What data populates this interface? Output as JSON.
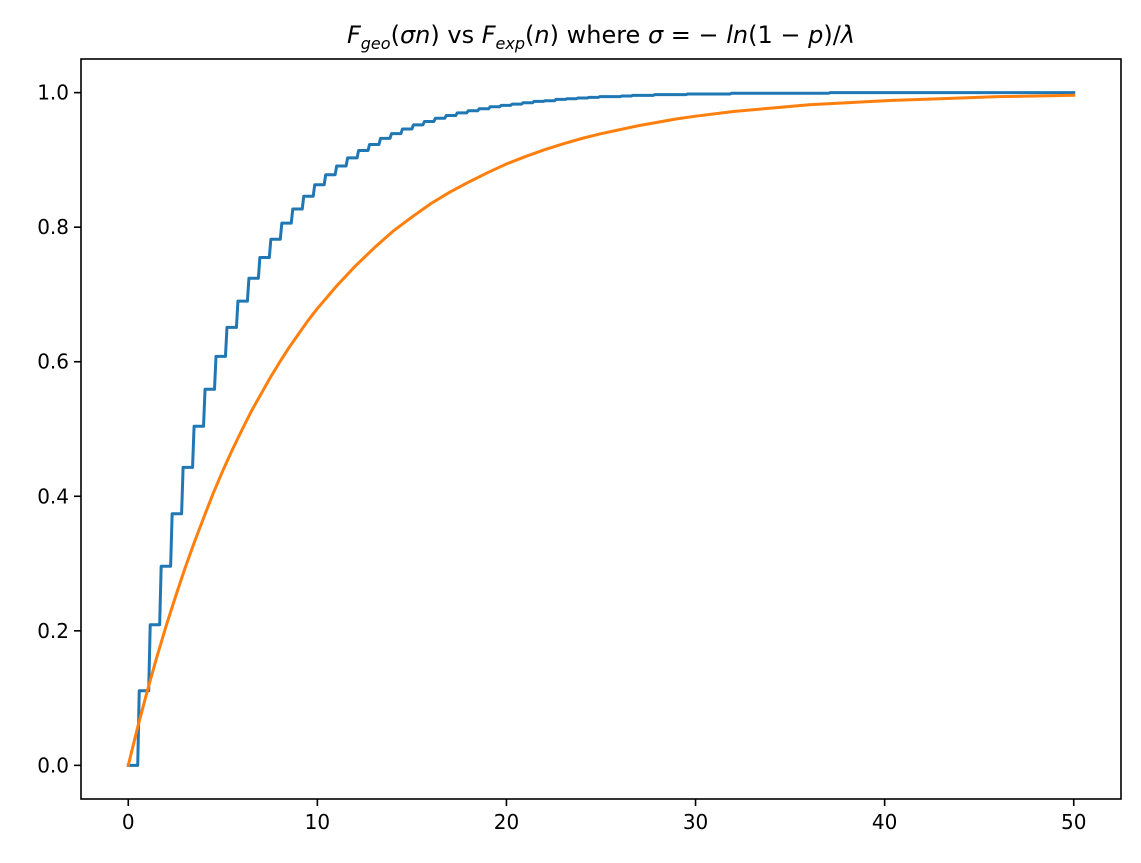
{
  "chart_data": {
    "type": "line",
    "title": {
      "geo_letter": "F",
      "geo_sub": "geo",
      "geo_arg_open": "(",
      "geo_arg_sigma": "σ",
      "geo_arg_n": "n",
      "geo_arg_close": ")",
      "vs": " vs ",
      "exp_letter": "F",
      "exp_sub": "exp",
      "exp_arg_open": "(",
      "exp_arg_n": "n",
      "exp_arg_close": ")",
      "where": " where ",
      "sigma_expr_a": "σ",
      "sigma_expr_b": " = − ",
      "sigma_expr_c": "ln",
      "sigma_expr_d": "(1 − ",
      "sigma_expr_e": "p",
      "sigma_expr_f": ")/",
      "sigma_expr_g": "λ"
    },
    "xlabel": "",
    "ylabel": "",
    "xlim": [
      -2.5,
      52.5
    ],
    "ylim": [
      -0.05,
      1.05
    ],
    "xticks": [
      0,
      10,
      20,
      30,
      40,
      50
    ],
    "yticks": [
      0.0,
      0.2,
      0.4,
      0.6,
      0.8,
      1.0
    ],
    "xtick_labels": [
      "0",
      "10",
      "20",
      "30",
      "40",
      "50"
    ],
    "ytick_labels": [
      "0.0",
      "0.2",
      "0.4",
      "0.6",
      "0.8",
      "1.0"
    ],
    "grid": false,
    "legend": "none",
    "series": [
      {
        "style": "step",
        "color": "#1f77b4",
        "x": [
          0,
          0.5,
          0.58,
          1.08,
          1.16,
          1.66,
          1.74,
          2.24,
          2.32,
          2.82,
          2.9,
          3.4,
          3.48,
          3.98,
          4.06,
          4.56,
          4.64,
          5.14,
          5.22,
          5.72,
          5.8,
          6.3,
          6.38,
          6.88,
          6.96,
          7.46,
          7.54,
          8.04,
          8.12,
          8.62,
          8.7,
          9.2,
          9.28,
          9.78,
          9.86,
          10.36,
          10.44,
          10.94,
          11.02,
          11.52,
          11.6,
          12.1,
          12.18,
          12.68,
          12.76,
          13.26,
          13.34,
          13.84,
          13.92,
          14.42,
          14.5,
          15.0,
          15.08,
          15.58,
          15.66,
          16.16,
          16.24,
          16.74,
          16.82,
          17.32,
          17.4,
          17.9,
          17.98,
          18.48,
          18.56,
          19.06,
          19.14,
          19.64,
          19.72,
          20.22,
          20.3,
          20.8,
          20.88,
          21.38,
          21.46,
          21.96,
          22.04,
          22.54,
          22.62,
          23.12,
          23.2,
          23.7,
          23.78,
          24.28,
          24.36,
          24.86,
          24.94,
          25.44,
          25.52,
          26.02,
          26.1,
          26.6,
          26.68,
          27.18,
          27.26,
          27.76,
          27.84,
          28.34,
          28.42,
          28.92,
          29.0,
          29.5,
          29.58,
          30.08,
          30.16,
          30.66,
          30.74,
          31.24,
          31.32,
          31.82,
          31.9,
          32.4,
          32.48,
          32.98,
          33.06,
          33.56,
          33.64,
          34.14,
          34.22,
          34.72,
          34.8,
          35.3,
          35.38,
          35.88,
          35.96,
          36.46,
          36.54,
          37.04,
          37.12,
          37.62,
          37.7,
          38.2,
          38.28,
          38.78,
          38.86,
          39.36,
          39.44,
          39.94,
          40.02,
          40.52,
          40.6,
          41.1,
          41.18,
          41.68,
          41.76,
          42.26,
          42.34,
          42.84,
          42.92,
          43.42,
          43.5,
          44.0,
          44.08,
          44.58,
          44.66,
          45.16,
          45.24,
          45.74,
          45.82,
          46.32,
          46.4,
          46.9,
          46.98,
          47.48,
          47.56,
          48.06,
          48.14,
          48.64,
          48.72,
          49.22,
          49.3,
          49.8,
          49.88,
          50.0
        ],
        "y": [
          0.0,
          0.0,
          0.111,
          0.111,
          0.209,
          0.209,
          0.296,
          0.296,
          0.374,
          0.374,
          0.443,
          0.443,
          0.504,
          0.504,
          0.559,
          0.559,
          0.608,
          0.608,
          0.651,
          0.651,
          0.69,
          0.69,
          0.724,
          0.724,
          0.755,
          0.755,
          0.782,
          0.782,
          0.806,
          0.806,
          0.827,
          0.827,
          0.846,
          0.846,
          0.863,
          0.863,
          0.878,
          0.878,
          0.891,
          0.891,
          0.903,
          0.903,
          0.914,
          0.914,
          0.923,
          0.923,
          0.932,
          0.932,
          0.939,
          0.939,
          0.946,
          0.946,
          0.952,
          0.952,
          0.957,
          0.957,
          0.962,
          0.962,
          0.966,
          0.966,
          0.97,
          0.97,
          0.973,
          0.973,
          0.976,
          0.976,
          0.979,
          0.979,
          0.981,
          0.981,
          0.983,
          0.983,
          0.985,
          0.985,
          0.987,
          0.987,
          0.988,
          0.988,
          0.99,
          0.99,
          0.991,
          0.991,
          0.992,
          0.992,
          0.993,
          0.993,
          0.994,
          0.994,
          0.994,
          0.994,
          0.995,
          0.995,
          0.996,
          0.996,
          0.996,
          0.996,
          0.997,
          0.997,
          0.997,
          0.997,
          0.997,
          0.997,
          0.998,
          0.998,
          0.998,
          0.998,
          0.998,
          0.998,
          0.998,
          0.998,
          0.999,
          0.999,
          0.999,
          0.999,
          0.999,
          0.999,
          0.999,
          0.999,
          0.999,
          0.999,
          0.999,
          0.999,
          0.999,
          0.999,
          0.999,
          0.999,
          0.999,
          0.999,
          1.0,
          1.0,
          1.0,
          1.0,
          1.0,
          1.0,
          1.0,
          1.0,
          1.0,
          1.0,
          1.0,
          1.0,
          1.0,
          1.0,
          1.0,
          1.0,
          1.0,
          1.0,
          1.0,
          1.0,
          1.0,
          1.0,
          1.0,
          1.0,
          1.0,
          1.0,
          1.0,
          1.0,
          1.0,
          1.0,
          1.0,
          1.0,
          1.0,
          1.0,
          1.0,
          1.0,
          1.0,
          1.0,
          1.0,
          1.0,
          1.0,
          1.0,
          1.0,
          1.0,
          1.0,
          1.0
        ]
      },
      {
        "style": "line",
        "color": "#ff7f0e",
        "x": [
          0,
          0.5,
          1,
          1.5,
          2,
          2.5,
          3,
          3.5,
          4,
          4.5,
          5,
          5.5,
          6,
          6.5,
          7,
          7.5,
          8,
          8.5,
          9,
          9.5,
          10,
          11,
          12,
          13,
          14,
          15,
          16,
          17,
          18,
          19,
          20,
          21,
          22,
          23,
          24,
          25,
          26,
          27,
          28,
          29,
          30,
          32,
          34,
          36,
          38,
          40,
          42,
          44,
          46,
          48,
          50
        ],
        "y": [
          0.0,
          0.057,
          0.11,
          0.16,
          0.207,
          0.251,
          0.293,
          0.332,
          0.369,
          0.405,
          0.438,
          0.469,
          0.498,
          0.526,
          0.551,
          0.576,
          0.599,
          0.621,
          0.641,
          0.661,
          0.679,
          0.712,
          0.742,
          0.769,
          0.794,
          0.815,
          0.835,
          0.852,
          0.867,
          0.881,
          0.894,
          0.905,
          0.915,
          0.924,
          0.932,
          0.939,
          0.945,
          0.951,
          0.956,
          0.961,
          0.965,
          0.972,
          0.977,
          0.982,
          0.985,
          0.988,
          0.99,
          0.992,
          0.994,
          0.995,
          0.996
        ]
      }
    ]
  }
}
